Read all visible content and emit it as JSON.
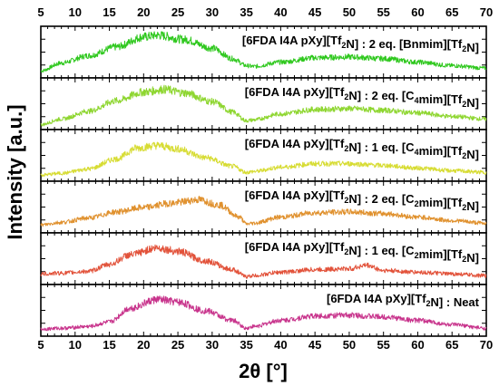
{
  "chart_data": {
    "type": "line",
    "title": "",
    "xlabel": "2θ [°]",
    "ylabel": "Intensity [a.u.]",
    "xlim": [
      5,
      70
    ],
    "x_ticks": [
      5,
      10,
      15,
      20,
      25,
      30,
      35,
      40,
      45,
      50,
      55,
      60,
      65,
      70
    ],
    "stacked": true,
    "grid": false,
    "legend": "none",
    "series": [
      {
        "name": "[6FDA I4A pXy][Tf2N] : 2 eq. [Bnmim][Tf2N]",
        "label_parts": [
          [
            "6FDA I4A pXy][Tf",
            ""
          ],
          [
            "2",
            "sub"
          ],
          [
            "N] : 2 eq. [Bnmim][Tf",
            ""
          ],
          [
            "2",
            "sub"
          ],
          [
            "N]",
            ""
          ]
        ],
        "color": "#2fc81e",
        "x": [
          5,
          8,
          12,
          16,
          20,
          22,
          26,
          30,
          33,
          35,
          36,
          40,
          45,
          50,
          55,
          60,
          65,
          70
        ],
        "values": [
          0.1,
          0.28,
          0.45,
          0.65,
          0.88,
          0.92,
          0.82,
          0.62,
          0.38,
          0.22,
          0.2,
          0.3,
          0.4,
          0.42,
          0.38,
          0.3,
          0.22,
          0.16
        ]
      },
      {
        "name": "[6FDA I4A pXy][Tf2N] : 2 eq. [C4mim][Tf2N]",
        "label_parts": [
          [
            "6FDA I4A pXy][Tf",
            ""
          ],
          [
            "2",
            "sub"
          ],
          [
            "N] : 2 eq. [C",
            ""
          ],
          [
            "4",
            "sub"
          ],
          [
            "mim][Tf",
            ""
          ],
          [
            "2",
            "sub"
          ],
          [
            "N]",
            ""
          ]
        ],
        "color": "#8ed630",
        "x": [
          5,
          8,
          12,
          16,
          20,
          23,
          26,
          30,
          33,
          35,
          36,
          40,
          45,
          50,
          55,
          60,
          65,
          70
        ],
        "values": [
          0.05,
          0.18,
          0.36,
          0.6,
          0.8,
          0.86,
          0.78,
          0.58,
          0.34,
          0.14,
          0.16,
          0.3,
          0.4,
          0.42,
          0.38,
          0.32,
          0.24,
          0.18
        ]
      },
      {
        "name": "[6FDA I4A pXy][Tf2N] : 1 eq. [C4mim][Tf2N]",
        "label_parts": [
          [
            "6FDA I4A pXy][Tf",
            ""
          ],
          [
            "2",
            "sub"
          ],
          [
            "N] : 1 eq. [C",
            ""
          ],
          [
            "4",
            "sub"
          ],
          [
            "mim][Tf",
            ""
          ],
          [
            "2",
            "sub"
          ],
          [
            "N]",
            ""
          ]
        ],
        "color": "#d7dc33",
        "x": [
          5,
          8,
          12,
          16,
          19,
          22,
          25,
          29,
          33,
          35,
          36,
          40,
          45,
          50,
          55,
          60,
          65,
          70
        ],
        "values": [
          0.08,
          0.12,
          0.22,
          0.45,
          0.7,
          0.76,
          0.68,
          0.48,
          0.28,
          0.14,
          0.16,
          0.26,
          0.34,
          0.34,
          0.3,
          0.24,
          0.18,
          0.14
        ]
      },
      {
        "name": "[6FDA I4A pXy][Tf2N] : 2 eq. [C2mim][Tf2N]",
        "label_parts": [
          [
            "6FDA I4A pXy][Tf",
            ""
          ],
          [
            "2",
            "sub"
          ],
          [
            "N] : 2 eq. [C",
            ""
          ],
          [
            "2",
            "sub"
          ],
          [
            "mim][Tf",
            ""
          ],
          [
            "2",
            "sub"
          ],
          [
            "N]",
            ""
          ]
        ],
        "color": "#e0912e",
        "x": [
          5,
          8,
          12,
          16,
          20,
          24,
          28,
          31,
          34,
          35,
          36,
          40,
          45,
          50,
          55,
          60,
          65,
          70
        ],
        "values": [
          0.12,
          0.18,
          0.28,
          0.42,
          0.52,
          0.62,
          0.7,
          0.58,
          0.3,
          0.14,
          0.16,
          0.3,
          0.4,
          0.42,
          0.38,
          0.3,
          0.22,
          0.16
        ]
      },
      {
        "name": "[6FDA I4A pXy][Tf2N] : 1 eq. [C2mim][Tf2N]",
        "label_parts": [
          [
            "6FDA I4A pXy][Tf",
            ""
          ],
          [
            "2",
            "sub"
          ],
          [
            "N] : 1 eq. [C",
            ""
          ],
          [
            "2",
            "sub"
          ],
          [
            "mim][Tf",
            ""
          ],
          [
            "2",
            "sub"
          ],
          [
            "N]",
            ""
          ]
        ],
        "color": "#e2523a",
        "x": [
          5,
          8,
          12,
          15,
          18,
          22,
          25,
          29,
          33,
          35,
          36,
          40,
          45,
          50,
          52.5,
          55,
          60,
          65,
          70
        ],
        "values": [
          0.18,
          0.2,
          0.24,
          0.4,
          0.62,
          0.78,
          0.7,
          0.48,
          0.28,
          0.12,
          0.14,
          0.22,
          0.28,
          0.3,
          0.38,
          0.26,
          0.22,
          0.18,
          0.14
        ]
      },
      {
        "name": "[6FDA I4A pXy][Tf2N] : Neat",
        "label_parts": [
          [
            "6FDA I4A pXy][Tf",
            ""
          ],
          [
            "2",
            "sub"
          ],
          [
            "N] : Neat",
            ""
          ]
        ],
        "color": "#c8348c",
        "x": [
          5,
          8,
          12,
          15,
          18,
          22,
          25,
          29,
          33,
          35,
          36,
          40,
          45,
          50,
          55,
          60,
          65,
          70
        ],
        "values": [
          0.1,
          0.12,
          0.16,
          0.26,
          0.58,
          0.78,
          0.72,
          0.52,
          0.3,
          0.12,
          0.16,
          0.3,
          0.4,
          0.42,
          0.38,
          0.3,
          0.2,
          0.12
        ]
      }
    ]
  }
}
